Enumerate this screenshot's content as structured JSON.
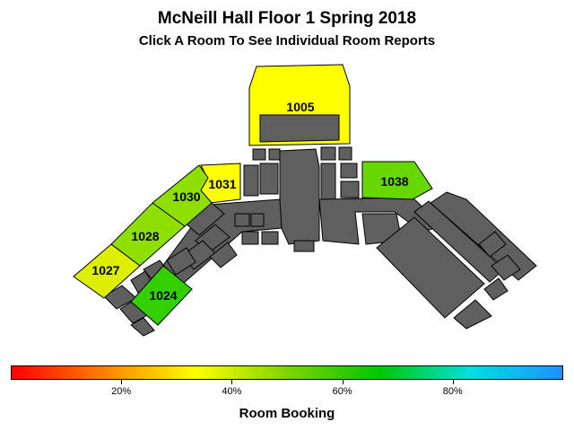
{
  "title": "McNeill Hall Floor 1 Spring 2018",
  "subtitle": "Click A Room To See Individual Room Reports",
  "colors": {
    "building": "#5f5f5f",
    "outline": "#000000",
    "gradient": [
      "#ff0000",
      "#ff8000",
      "#ffff00",
      "#7fd400",
      "#00c800",
      "#00e0e0",
      "#1e90ff"
    ]
  },
  "rooms": [
    {
      "label": "1005",
      "booking_pct": 50,
      "color": "#ffff00"
    },
    {
      "label": "1031",
      "booking_pct": 50,
      "color": "#ffff00"
    },
    {
      "label": "1030",
      "booking_pct": 56,
      "color": "#8fe000"
    },
    {
      "label": "1028",
      "booking_pct": 56,
      "color": "#8fe000"
    },
    {
      "label": "1027",
      "booking_pct": 52,
      "color": "#ddf000"
    },
    {
      "label": "1024",
      "booking_pct": 63,
      "color": "#33d000"
    },
    {
      "label": "1038",
      "booking_pct": 58,
      "color": "#66d800"
    }
  ],
  "legend": {
    "title": "Room Booking",
    "ticks": [
      "20%",
      "40%",
      "60%",
      "80%"
    ],
    "tick_values": [
      20,
      40,
      60,
      80
    ],
    "range": [
      0,
      100
    ]
  }
}
